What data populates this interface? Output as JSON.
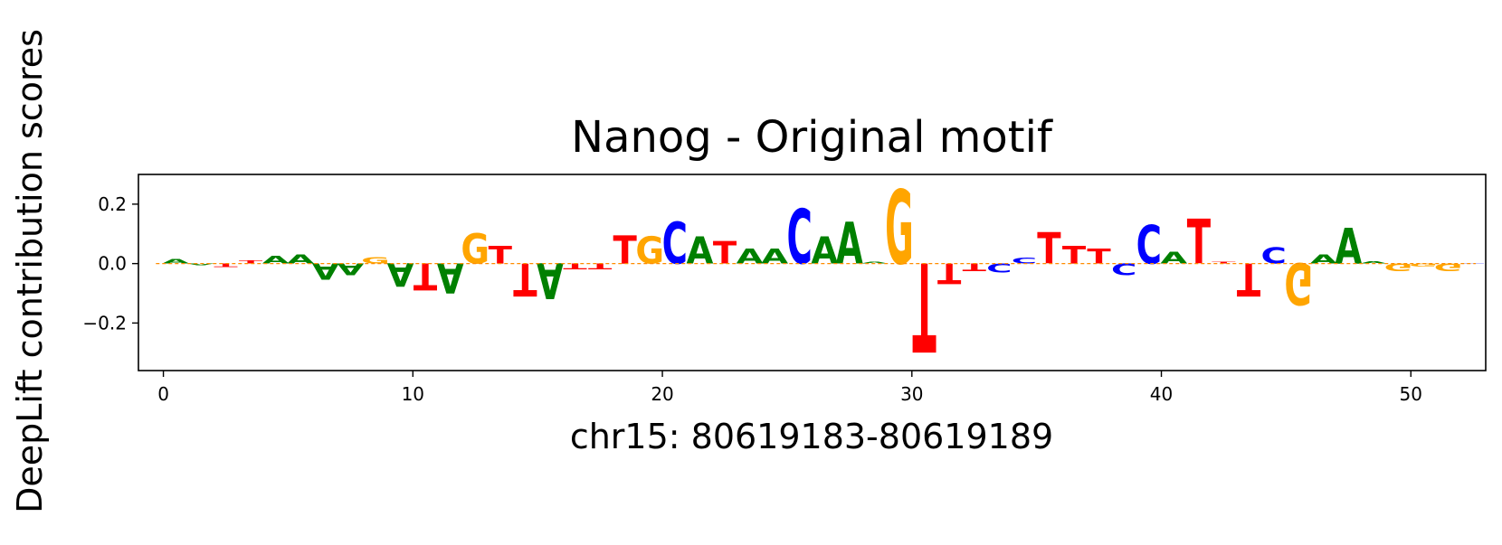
{
  "chart_data": {
    "type": "sequence-logo",
    "title": "Nanog - Original motif",
    "xlabel": "chr15: 80619183-80619189",
    "ylabel": "DeepLift contribution scores",
    "xlim": [
      -1,
      53
    ],
    "ylim": [
      -0.36,
      0.3
    ],
    "xticks": [
      0,
      10,
      20,
      30,
      40,
      50
    ],
    "yticks": [
      -0.2,
      0.0,
      0.2
    ],
    "ytick_labels": [
      "−0.2",
      "0.0",
      "0.2"
    ],
    "base_colors": {
      "A": "#008000",
      "C": "#0000ff",
      "G": "#ffa500",
      "T": "#ff0000"
    },
    "positions": [
      {
        "x": 0,
        "base": "A",
        "score": 0.015
      },
      {
        "x": 1,
        "base": "A",
        "score": -0.005
      },
      {
        "x": 2,
        "base": "T",
        "score": -0.012
      },
      {
        "x": 3,
        "base": "T",
        "score": 0.01
      },
      {
        "x": 4,
        "base": "A",
        "score": 0.025
      },
      {
        "x": 5,
        "base": "A",
        "score": 0.03
      },
      {
        "x": 6,
        "base": "A",
        "score": -0.055
      },
      {
        "x": 7,
        "base": "A",
        "score": -0.04
      },
      {
        "x": 8,
        "base": "G",
        "score": 0.022
      },
      {
        "x": 9,
        "base": "A",
        "score": -0.08
      },
      {
        "x": 10,
        "base": "T",
        "score": -0.09
      },
      {
        "x": 11,
        "base": "A",
        "score": -0.1
      },
      {
        "x": 12,
        "base": "G",
        "score": 0.1
      },
      {
        "x": 13,
        "base": "T",
        "score": 0.06
      },
      {
        "x": 14,
        "base": "T",
        "score": -0.11
      },
      {
        "x": 15,
        "base": "A",
        "score": -0.12
      },
      {
        "x": 16,
        "base": "T",
        "score": -0.02
      },
      {
        "x": 17,
        "base": "T",
        "score": -0.02
      },
      {
        "x": 18,
        "base": "T",
        "score": 0.095
      },
      {
        "x": 19,
        "base": "G",
        "score": 0.09
      },
      {
        "x": 20,
        "base": "C",
        "score": 0.14
      },
      {
        "x": 21,
        "base": "A",
        "score": 0.09
      },
      {
        "x": 22,
        "base": "T",
        "score": 0.075
      },
      {
        "x": 23,
        "base": "A",
        "score": 0.05
      },
      {
        "x": 24,
        "base": "A",
        "score": 0.05
      },
      {
        "x": 25,
        "base": "C",
        "score": 0.185
      },
      {
        "x": 26,
        "base": "A",
        "score": 0.09
      },
      {
        "x": 27,
        "base": "A",
        "score": 0.14
      },
      {
        "x": 28,
        "base": "A",
        "score": 0.005
      },
      {
        "x": 29,
        "base": "G",
        "score": 0.25
      },
      {
        "x": 30,
        "base": "T",
        "score": -0.3
      },
      {
        "x": 31,
        "base": "T",
        "score": -0.07
      },
      {
        "x": 32,
        "base": "T",
        "score": -0.025
      },
      {
        "x": 33,
        "base": "C",
        "score": -0.03
      },
      {
        "x": 34,
        "base": "C",
        "score": 0.02
      },
      {
        "x": 35,
        "base": "T",
        "score": 0.105
      },
      {
        "x": 36,
        "base": "T",
        "score": 0.06
      },
      {
        "x": 37,
        "base": "T",
        "score": 0.05
      },
      {
        "x": 38,
        "base": "C",
        "score": -0.04
      },
      {
        "x": 39,
        "base": "C",
        "score": 0.13
      },
      {
        "x": 40,
        "base": "A",
        "score": 0.04
      },
      {
        "x": 41,
        "base": "T",
        "score": 0.15
      },
      {
        "x": 42,
        "base": "T",
        "score": 0.005
      },
      {
        "x": 43,
        "base": "T",
        "score": -0.11
      },
      {
        "x": 44,
        "base": "C",
        "score": 0.055
      },
      {
        "x": 45,
        "base": "G",
        "score": -0.14
      },
      {
        "x": 46,
        "base": "A",
        "score": 0.03
      },
      {
        "x": 47,
        "base": "A",
        "score": 0.12
      },
      {
        "x": 48,
        "base": "A",
        "score": 0.008
      },
      {
        "x": 49,
        "base": "G",
        "score": -0.025
      },
      {
        "x": 50,
        "base": "G",
        "score": -0.01
      },
      {
        "x": 51,
        "base": "G",
        "score": -0.025
      },
      {
        "x": 52,
        "base": "C",
        "score": 0.002
      }
    ]
  }
}
